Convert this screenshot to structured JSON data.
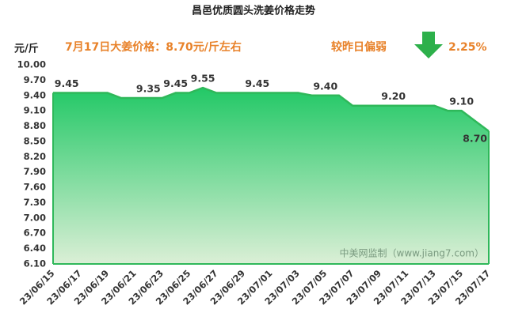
{
  "chart_data": {
    "type": "area",
    "title": "昌邑优质圆头洗姜价格走势",
    "y_label": "元/斤",
    "annotations": [
      "7月17日大姜价格：8.70元/斤左右",
      "较昨日偏弱",
      "2.25%"
    ],
    "watermark": "中美网监制（www.jiang7.com）",
    "categories": [
      "23/06/15",
      null,
      "23/06/17",
      null,
      "23/06/19",
      null,
      "23/06/21",
      null,
      "23/06/23",
      null,
      "23/06/25",
      null,
      "23/06/27",
      null,
      "23/06/29",
      null,
      "23/07/01",
      null,
      "23/07/03",
      null,
      "23/07/05",
      null,
      "23/07/07",
      null,
      "23/07/09",
      null,
      "23/07/11",
      null,
      "23/07/13",
      null,
      "23/07/15",
      null,
      "23/07/17"
    ],
    "values": [
      9.45,
      9.45,
      9.45,
      9.45,
      9.45,
      9.35,
      9.35,
      9.35,
      9.35,
      9.45,
      9.45,
      9.55,
      9.45,
      9.45,
      9.45,
      9.45,
      9.45,
      9.45,
      9.45,
      9.4,
      9.4,
      9.4,
      9.2,
      9.2,
      9.2,
      9.2,
      9.2,
      9.2,
      9.2,
      9.1,
      9.1,
      8.9,
      8.7
    ],
    "value_labels": [
      null,
      "9.45",
      null,
      null,
      null,
      null,
      null,
      "9.35",
      null,
      "9.45",
      null,
      "9.55",
      null,
      null,
      null,
      "9.45",
      null,
      null,
      null,
      null,
      "9.40",
      null,
      null,
      null,
      null,
      "9.20",
      null,
      null,
      null,
      null,
      "9.10",
      null,
      "8.70"
    ],
    "color": "#2fb85a",
    "ylim": [
      6.1,
      10.0
    ],
    "yticks": [
      {
        "value": 6.1,
        "label": "6.10"
      },
      {
        "value": 6.4,
        "label": "6.40"
      },
      {
        "value": 6.7,
        "label": "6.70"
      },
      {
        "value": 7.0,
        "label": "7.00"
      },
      {
        "value": 7.3,
        "label": "7.30"
      },
      {
        "value": 7.6,
        "label": "7.60"
      },
      {
        "value": 7.9,
        "label": "7.90"
      },
      {
        "value": 8.2,
        "label": "8.20"
      },
      {
        "value": 8.5,
        "label": "8.50"
      },
      {
        "value": 8.8,
        "label": "8.80"
      },
      {
        "value": 9.1,
        "label": "9.10"
      },
      {
        "value": 9.4,
        "label": "9.40"
      },
      {
        "value": 9.7,
        "label": "9.70"
      },
      {
        "value": 10.0,
        "label": "10.00"
      }
    ],
    "grid": false
  }
}
